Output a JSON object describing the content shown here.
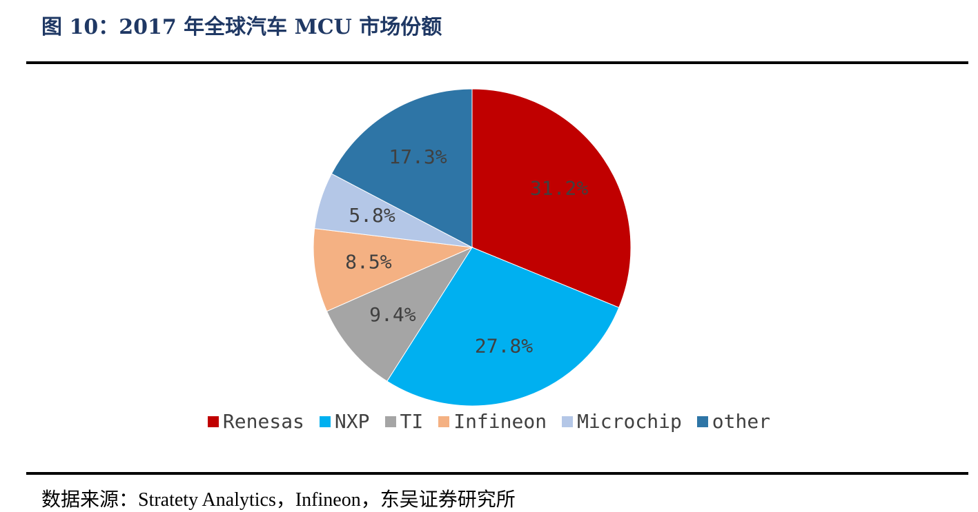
{
  "figure": {
    "title": "图 10：2017 年全球汽车 MCU 市场份额",
    "source": "数据来源：Stratety Analytics，Infineon，东吴证券研究所"
  },
  "chart_data": {
    "type": "pie",
    "categories": [
      "Renesas",
      "NXP",
      "TI",
      "Infineon",
      "Microchip",
      "other"
    ],
    "values": [
      31.2,
      27.8,
      9.4,
      8.5,
      5.8,
      17.3
    ],
    "labels": [
      "31.2%",
      "27.8%",
      "9.4%",
      "8.5%",
      "5.8%",
      "17.3%"
    ],
    "colors": [
      "#c00000",
      "#00b0f0",
      "#a5a5a5",
      "#f4b183",
      "#b4c7e7",
      "#2e75a6"
    ],
    "start_angle": "12 o'clock",
    "direction": "clockwise",
    "legend_position": "bottom"
  }
}
